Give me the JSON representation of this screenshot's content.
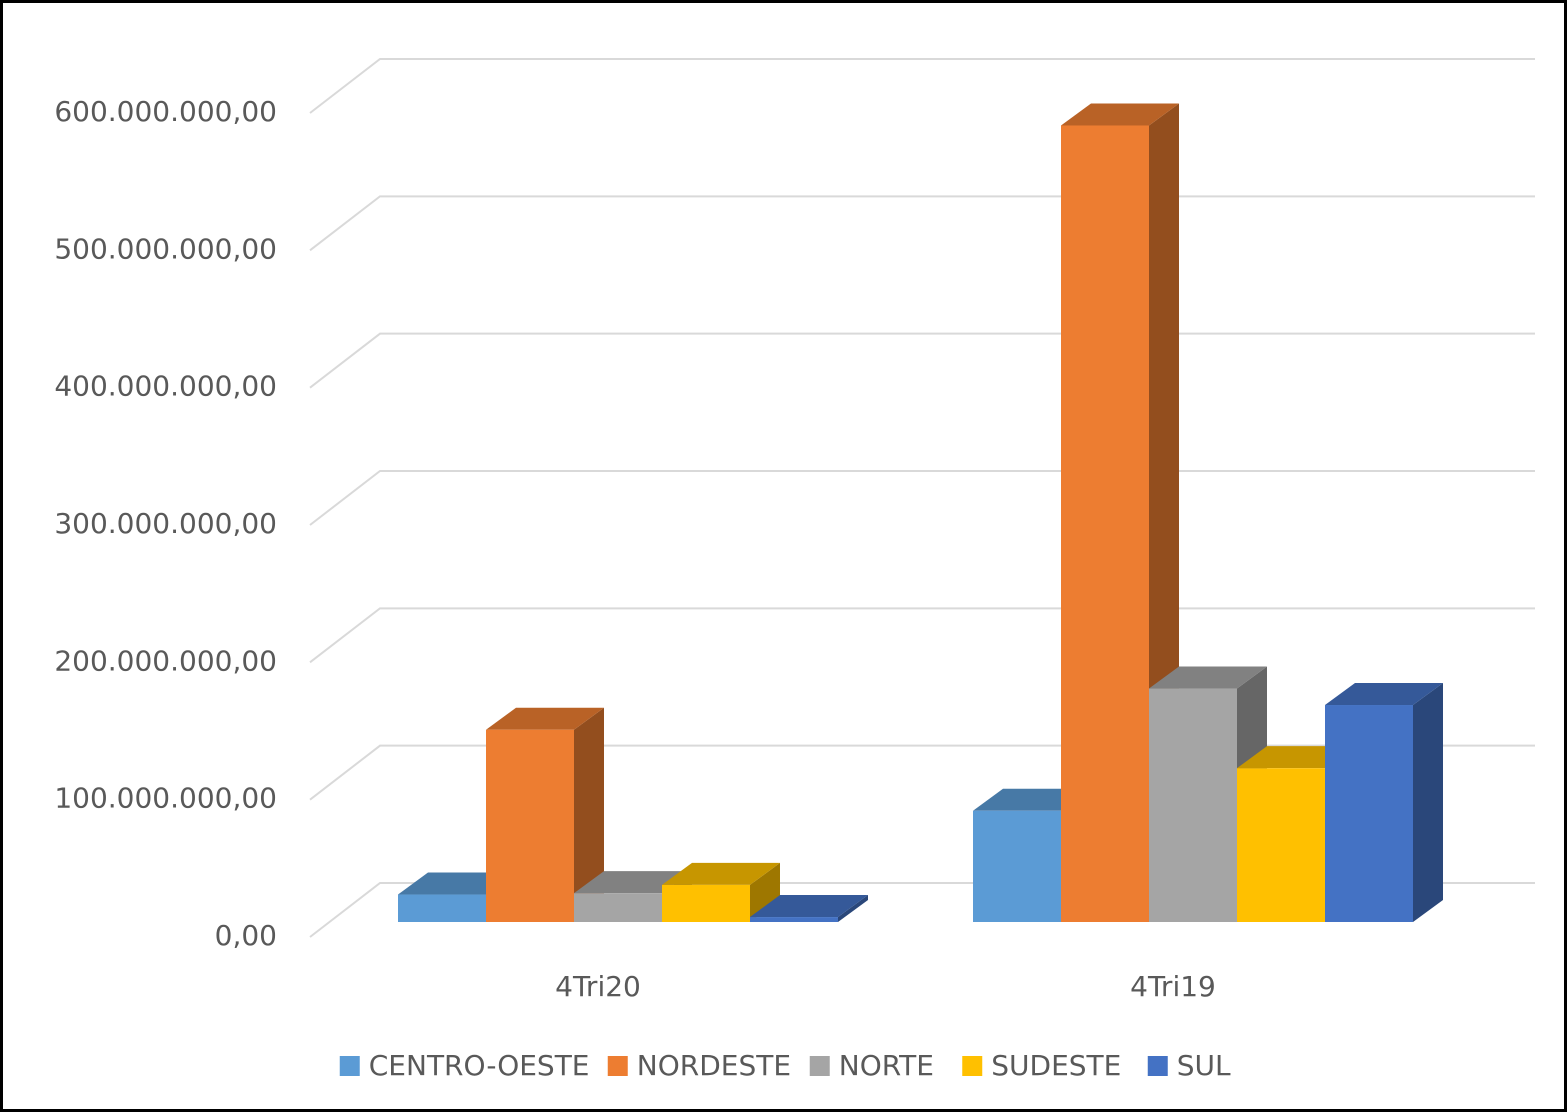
{
  "chart_data": {
    "type": "bar3d",
    "categories": [
      "4Tri20",
      "4Tri19"
    ],
    "series": [
      {
        "name": "CENTRO-OESTE",
        "color": "#5b9bd5",
        "values": [
          20000000,
          81000000
        ]
      },
      {
        "name": "NORDESTE",
        "color": "#ed7d31",
        "values": [
          140000000,
          580000000
        ]
      },
      {
        "name": "NORTE",
        "color": "#a5a5a5",
        "values": [
          21000000,
          170000000
        ]
      },
      {
        "name": "SUDESTE",
        "color": "#ffc000",
        "values": [
          27000000,
          112000000
        ]
      },
      {
        "name": "SUL",
        "color": "#4472c4",
        "values": [
          3600000,
          158000000
        ]
      }
    ],
    "ylim": [
      0,
      600000000
    ],
    "yticks": [
      {
        "value": 0,
        "label": "0,00"
      },
      {
        "value": 100000000,
        "label": "100.000.000,00"
      },
      {
        "value": 200000000,
        "label": "200.000.000,00"
      },
      {
        "value": 300000000,
        "label": "300.000.000,00"
      },
      {
        "value": 400000000,
        "label": "400.000.000,00"
      },
      {
        "value": 500000000,
        "label": "500.000.000,00"
      },
      {
        "value": 600000000,
        "label": "600.000.000,00"
      }
    ],
    "grid": true,
    "legend": "bottom"
  }
}
